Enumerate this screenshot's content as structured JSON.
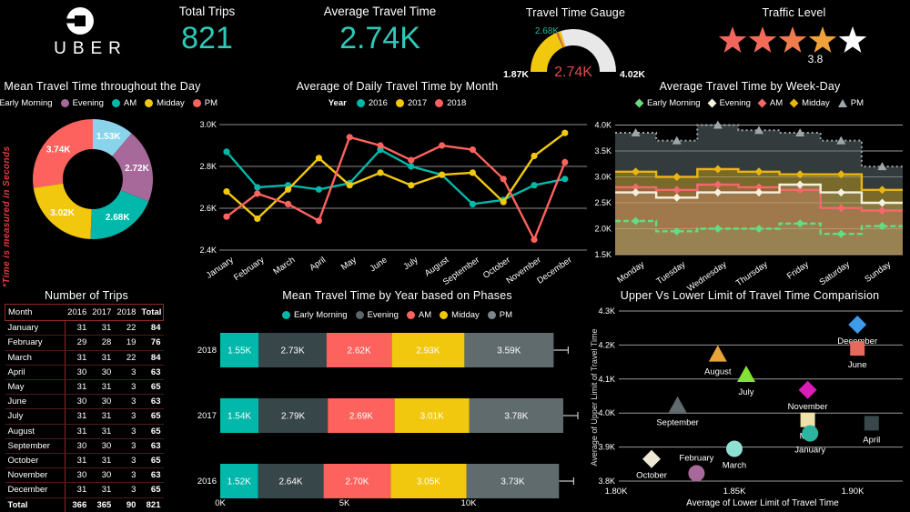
{
  "header": {
    "logo_text": "UBER",
    "kpis": [
      {
        "label": "Total Trips",
        "value": "821"
      },
      {
        "label": "Average Travel Time",
        "value": "2.74K"
      }
    ],
    "traffic": {
      "title": "Traffic Level",
      "rating": "3.8",
      "max_stars": 5,
      "filled_stars": 4,
      "star_colors": [
        "#F2655C",
        "#F26B58",
        "#F07C4D",
        "#EFA13C",
        "#FFFFFF"
      ]
    }
  },
  "colors": {
    "accent_teal": "#2FC9B9",
    "background": "#000000",
    "gauge_value_red": "#E0494E",
    "target_teal": "#2BB5A0"
  },
  "chart_data": [
    {
      "id": "gauge",
      "type": "gauge",
      "title": "Travel Time Gauge",
      "min": 1.87,
      "max": 4.02,
      "value": 2.74,
      "target": 2.68,
      "min_label": "1.87K",
      "max_label": "4.02K",
      "value_label": "2.74K",
      "target_label": "2.68K",
      "fill_color": "#F2C80F",
      "rest_color": "#E8E8E8",
      "target_marker_color": "#E8631C"
    },
    {
      "id": "day-phases-donut",
      "type": "pie",
      "title": "Mean Travel Time throughout the Day",
      "note": "*Time is measured in Seconds",
      "categories": [
        "Early Morning",
        "Evening",
        "AM",
        "Midday",
        "PM"
      ],
      "values": [
        1.53,
        2.72,
        2.68,
        3.02,
        3.74
      ],
      "labels": [
        "1.53K",
        "2.72K",
        "2.68K",
        "3.02K",
        "3.74K"
      ],
      "colors": [
        "#8AD4EB",
        "#A66999",
        "#01B8AA",
        "#F2C80F",
        "#FD625E"
      ]
    },
    {
      "id": "monthly-lines",
      "type": "line",
      "title": "Average of Daily Travel Time by Month",
      "legend_title": "Year",
      "x": [
        "January",
        "February",
        "March",
        "April",
        "May",
        "June",
        "July",
        "August",
        "September",
        "October",
        "November",
        "December"
      ],
      "series": [
        {
          "name": "2016",
          "color": "#01B8AA",
          "values": [
            2.87,
            2.7,
            2.71,
            2.69,
            2.72,
            2.88,
            2.8,
            2.76,
            2.62,
            2.64,
            2.71,
            2.74
          ]
        },
        {
          "name": "2017",
          "color": "#F2C80F",
          "values": [
            2.68,
            2.55,
            2.69,
            2.84,
            2.71,
            2.77,
            2.71,
            2.76,
            2.77,
            2.63,
            2.85,
            2.96
          ]
        },
        {
          "name": "2018",
          "color": "#FD625E",
          "values": [
            2.56,
            2.67,
            2.62,
            2.54,
            2.94,
            2.9,
            2.83,
            2.9,
            2.88,
            2.74,
            2.45,
            2.82
          ]
        }
      ],
      "ylim": [
        2.4,
        3.0
      ],
      "yticks": [
        3.0,
        2.8,
        2.6,
        2.4
      ],
      "ytick_labels": [
        "3.0K",
        "2.8K",
        "2.6K",
        "2.4K"
      ]
    },
    {
      "id": "weekday-steps",
      "type": "line",
      "subtype": "step-area",
      "title": "Average Travel Time by Week-Day",
      "x": [
        "Monday",
        "Tuesday",
        "Wednesday",
        "Thursday",
        "Friday",
        "Saturday",
        "Sunday"
      ],
      "series": [
        {
          "name": "Early Morning",
          "color": "#63DC84",
          "marker": "diamond",
          "dash": "6 3",
          "fill": "rgba(99,220,132,0.10)",
          "values": [
            2.15,
            1.95,
            2.0,
            2.0,
            2.1,
            1.9,
            2.05
          ]
        },
        {
          "name": "Evening",
          "color": "#F6F1DC",
          "marker": "diamond",
          "fill": "rgba(246,241,220,0.12)",
          "values": [
            2.7,
            2.6,
            2.7,
            2.7,
            2.85,
            2.7,
            2.5
          ]
        },
        {
          "name": "AM",
          "color": "#F1696B",
          "marker": "diamond",
          "fill": "rgba(241,105,107,0.22)",
          "values": [
            2.8,
            2.75,
            2.85,
            2.8,
            2.75,
            2.4,
            2.35
          ]
        },
        {
          "name": "Midday",
          "color": "#E9B511",
          "marker": "diamond",
          "fill": "rgba(233,181,17,0.38)",
          "values": [
            3.1,
            3.0,
            3.15,
            3.1,
            3.05,
            3.05,
            2.75
          ]
        },
        {
          "name": "PM",
          "color": "#9EA8AA",
          "marker": "triangle",
          "dash": "2 3",
          "fill": "rgba(95,107,109,0.55)",
          "values": [
            3.85,
            3.7,
            4.0,
            3.9,
            3.85,
            3.7,
            3.2
          ]
        }
      ],
      "ylim": [
        1.5,
        4.0
      ],
      "yticks": [
        4.0,
        3.5,
        3.0,
        2.5,
        2.0,
        1.5
      ],
      "ytick_labels": [
        "4.0K",
        "3.5K",
        "3.0K",
        "2.5K",
        "2.0K",
        "1.5K"
      ]
    },
    {
      "id": "trips-table",
      "type": "table",
      "title": "Number of Trips",
      "columns": [
        "Month",
        "2016",
        "2017",
        "2018",
        "Total"
      ],
      "rows": [
        [
          "January",
          "31",
          "31",
          "22",
          "84"
        ],
        [
          "February",
          "29",
          "28",
          "19",
          "76"
        ],
        [
          "March",
          "31",
          "31",
          "22",
          "84"
        ],
        [
          "April",
          "30",
          "30",
          "3",
          "63"
        ],
        [
          "May",
          "31",
          "31",
          "3",
          "65"
        ],
        [
          "June",
          "30",
          "30",
          "3",
          "63"
        ],
        [
          "July",
          "31",
          "31",
          "3",
          "65"
        ],
        [
          "August",
          "31",
          "31",
          "3",
          "65"
        ],
        [
          "September",
          "30",
          "30",
          "3",
          "63"
        ],
        [
          "October",
          "31",
          "31",
          "3",
          "65"
        ],
        [
          "November",
          "30",
          "30",
          "3",
          "63"
        ],
        [
          "December",
          "31",
          "31",
          "3",
          "65"
        ]
      ],
      "total_row": [
        "Total",
        "366",
        "365",
        "90",
        "821"
      ]
    },
    {
      "id": "phases-stacked",
      "type": "bar",
      "subtype": "stacked-horizontal",
      "title": "Mean Travel Time by Year based on Phases",
      "segments": [
        "Early Morning",
        "Evening",
        "AM",
        "Midday",
        "PM"
      ],
      "colors": [
        "#01B8AA",
        "#374649",
        "#FD625E",
        "#F2C80F",
        "#5F6B6D"
      ],
      "legend_colors": [
        "#01B8AA",
        "#5A666A",
        "#FD625E",
        "#F2C80F",
        "#7A878A"
      ],
      "series": [
        {
          "year": "2018",
          "values": [
            1.55,
            2.73,
            2.62,
            2.93,
            3.59
          ],
          "labels": [
            "1.55K",
            "2.73K",
            "2.62K",
            "2.93K",
            "3.59K"
          ]
        },
        {
          "year": "2017",
          "values": [
            1.54,
            2.79,
            2.69,
            3.01,
            3.78
          ],
          "labels": [
            "1.54K",
            "2.79K",
            "2.69K",
            "3.01K",
            "3.78K"
          ]
        },
        {
          "year": "2016",
          "values": [
            1.52,
            2.64,
            2.7,
            3.05,
            3.73
          ],
          "labels": [
            "1.52K",
            "2.64K",
            "2.70K",
            "3.05K",
            "3.73K"
          ]
        }
      ],
      "xlim": [
        0,
        14.8
      ],
      "xticks": [
        0,
        5,
        10
      ],
      "xtick_labels": [
        "0K",
        "5K",
        "10K"
      ]
    },
    {
      "id": "limits-scatter",
      "type": "scatter",
      "title": "Upper Vs Lower Limit of Travel Time Comparision",
      "xlabel": "Average of Lower Limit of Travel Time",
      "ylabel": "Average of Upper Limit of Travel Time",
      "xlim": [
        1.8,
        1.92
      ],
      "ylim": [
        3.8,
        4.3
      ],
      "xticks": [
        1.8,
        1.85,
        1.9
      ],
      "xtick_labels": [
        "1.80K",
        "1.85K",
        "1.90K"
      ],
      "yticks": [
        4.3,
        4.2,
        4.1,
        4.0,
        3.9,
        3.8
      ],
      "ytick_labels": [
        "4.3K",
        "4.2K",
        "4.1K",
        "4.0K",
        "3.9K",
        "3.8K"
      ],
      "points": [
        {
          "label": "December",
          "x": 1.902,
          "y": 4.26,
          "shape": "diamond",
          "color": "#3D9BE9",
          "label_pos": "below"
        },
        {
          "label": "June",
          "x": 1.902,
          "y": 4.19,
          "shape": "square",
          "color": "#E8685D",
          "label_pos": "below"
        },
        {
          "label": "August",
          "x": 1.843,
          "y": 4.17,
          "shape": "triangle",
          "color": "#E9A33B",
          "label_pos": "below"
        },
        {
          "label": "July",
          "x": 1.855,
          "y": 4.11,
          "shape": "triangle",
          "color": "#86E232",
          "label_pos": "below"
        },
        {
          "label": "November",
          "x": 1.881,
          "y": 4.068,
          "shape": "diamond",
          "color": "#DC1CB8",
          "label_pos": "below"
        },
        {
          "label": "September",
          "x": 1.826,
          "y": 4.02,
          "shape": "triangle",
          "color": "#5F6B6D",
          "label_pos": "below"
        },
        {
          "label": "May",
          "x": 1.881,
          "y": 3.98,
          "shape": "square",
          "color": "#EDE0A8",
          "label_pos": "below"
        },
        {
          "label": "January",
          "x": 1.882,
          "y": 3.94,
          "shape": "circle",
          "color": "#2BB5A0",
          "label_pos": "below"
        },
        {
          "label": "April",
          "x": 1.908,
          "y": 3.97,
          "shape": "square",
          "color": "#37474A",
          "label_pos": "below"
        },
        {
          "label": "March",
          "x": 1.85,
          "y": 3.895,
          "shape": "circle",
          "color": "#8FE0D2",
          "label_pos": "below"
        },
        {
          "label": "October",
          "x": 1.815,
          "y": 3.865,
          "shape": "diamond",
          "color": "#EFE8D2",
          "label_pos": "below"
        },
        {
          "label": "February",
          "x": 1.834,
          "y": 3.823,
          "shape": "circle",
          "color": "#A66999",
          "label_pos": "above"
        }
      ]
    }
  ]
}
